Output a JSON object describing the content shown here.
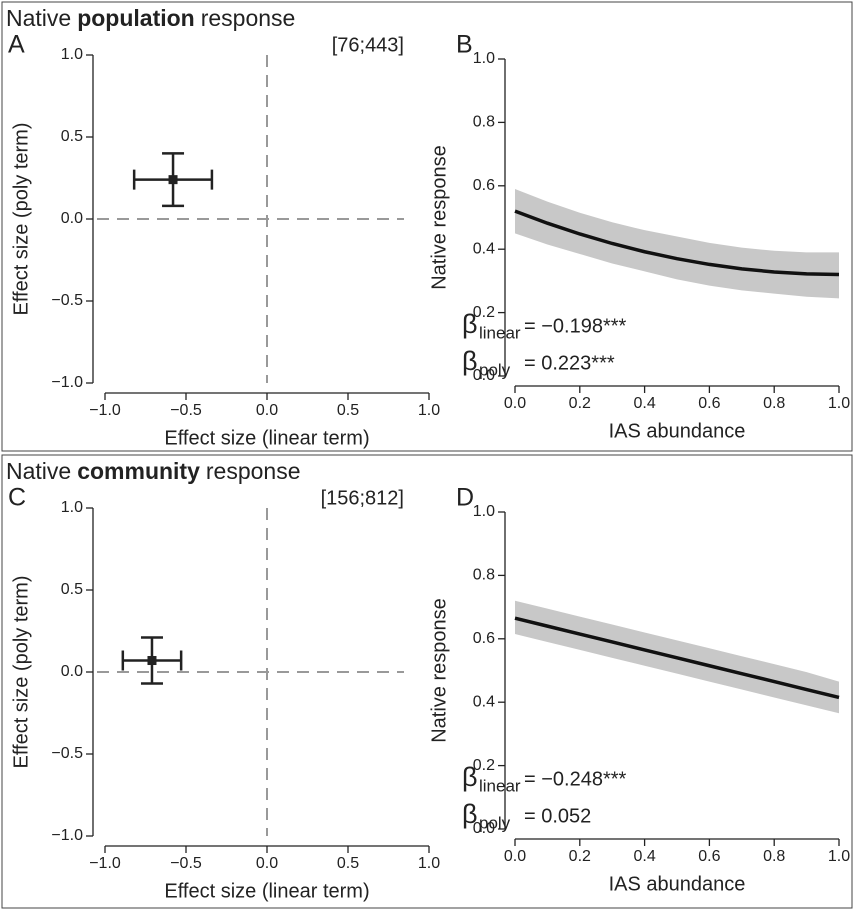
{
  "chart_data": [
    {
      "type": "scatter",
      "title_parts": [
        "Native",
        "population",
        "response"
      ],
      "panel_label": "A",
      "annotation": "[76;443]",
      "xlabel": "Effect size (linear term)",
      "ylabel": "Effect size (poly term)",
      "x": [
        -0.58
      ],
      "values": [
        0.24
      ],
      "xerr": [
        0.24
      ],
      "yerr": [
        0.16
      ],
      "color": "#222222",
      "ref_x": 0,
      "ref_y": 0,
      "ref_color": "#999999",
      "xlim": [
        -1,
        1
      ],
      "ylim": [
        -1,
        1
      ],
      "xticks": [
        {
          "value": -1,
          "label": "−1.0"
        },
        {
          "value": -0.5,
          "label": "−0.5"
        },
        {
          "value": 0,
          "label": "0.0"
        },
        {
          "value": 0.5,
          "label": "0.5"
        },
        {
          "value": 1,
          "label": "1.0"
        }
      ],
      "yticks": [
        {
          "value": -1,
          "label": "−1.0"
        },
        {
          "value": -0.5,
          "label": "−0.5"
        },
        {
          "value": 0,
          "label": "0.0"
        },
        {
          "value": 0.5,
          "label": "0.5"
        },
        {
          "value": 1,
          "label": "1.0"
        }
      ]
    },
    {
      "type": "line",
      "panel_label": "B",
      "xlabel": "IAS abundance",
      "ylabel": "Native response",
      "betas": [
        {
          "symbol": "β",
          "subscript": "linear",
          "text": "= −0.198***"
        },
        {
          "symbol": "β",
          "subscript": "poly",
          "text": "= 0.223***"
        }
      ],
      "x": [
        0,
        0.1,
        0.2,
        0.3,
        0.4,
        0.5,
        0.6,
        0.7,
        0.8,
        0.9,
        1
      ],
      "values": [
        0.52,
        0.482,
        0.448,
        0.418,
        0.392,
        0.37,
        0.352,
        0.338,
        0.328,
        0.322,
        0.32
      ],
      "lower": [
        0.45,
        0.415,
        0.385,
        0.355,
        0.33,
        0.305,
        0.285,
        0.27,
        0.26,
        0.25,
        0.245
      ],
      "upper": [
        0.59,
        0.55,
        0.515,
        0.485,
        0.46,
        0.44,
        0.42,
        0.405,
        0.395,
        0.39,
        0.39
      ],
      "color": "#111111",
      "band_color": "#c8c8c8",
      "xlim": [
        0,
        1
      ],
      "ylim": [
        0,
        1
      ],
      "xticks": [
        {
          "value": 0,
          "label": "0.0"
        },
        {
          "value": 0.2,
          "label": "0.2"
        },
        {
          "value": 0.4,
          "label": "0.4"
        },
        {
          "value": 0.6,
          "label": "0.6"
        },
        {
          "value": 0.8,
          "label": "0.8"
        },
        {
          "value": 1,
          "label": "1.0"
        }
      ],
      "yticks": [
        {
          "value": 0,
          "label": "0.0"
        },
        {
          "value": 0.2,
          "label": "0.2"
        },
        {
          "value": 0.4,
          "label": "0.4"
        },
        {
          "value": 0.6,
          "label": "0.6"
        },
        {
          "value": 0.8,
          "label": "0.8"
        },
        {
          "value": 1,
          "label": "1.0"
        }
      ]
    },
    {
      "type": "scatter",
      "title_parts": [
        "Native",
        "community",
        "response"
      ],
      "panel_label": "C",
      "annotation": "[156;812]",
      "xlabel": "Effect size (linear term)",
      "ylabel": "Effect size (poly term)",
      "x": [
        -0.71
      ],
      "values": [
        0.07
      ],
      "xerr": [
        0.18
      ],
      "yerr": [
        0.14
      ],
      "color": "#222222",
      "ref_x": 0,
      "ref_y": 0,
      "ref_color": "#999999",
      "xlim": [
        -1,
        1
      ],
      "ylim": [
        -1,
        1
      ],
      "xticks": [
        {
          "value": -1,
          "label": "−1.0"
        },
        {
          "value": -0.5,
          "label": "−0.5"
        },
        {
          "value": 0,
          "label": "0.0"
        },
        {
          "value": 0.5,
          "label": "0.5"
        },
        {
          "value": 1,
          "label": "1.0"
        }
      ],
      "yticks": [
        {
          "value": -1,
          "label": "−1.0"
        },
        {
          "value": -0.5,
          "label": "−0.5"
        },
        {
          "value": 0,
          "label": "0.0"
        },
        {
          "value": 0.5,
          "label": "0.5"
        },
        {
          "value": 1,
          "label": "1.0"
        }
      ]
    },
    {
      "type": "line",
      "panel_label": "D",
      "xlabel": "IAS abundance",
      "ylabel": "Native response",
      "betas": [
        {
          "symbol": "β",
          "subscript": "linear",
          "text": "= −0.248***"
        },
        {
          "symbol": "β",
          "subscript": "poly",
          "text": "= 0.052"
        }
      ],
      "x": [
        0,
        0.1,
        0.2,
        0.3,
        0.4,
        0.5,
        0.6,
        0.7,
        0.8,
        0.9,
        1
      ],
      "values": [
        0.665,
        0.64,
        0.615,
        0.59,
        0.565,
        0.54,
        0.515,
        0.49,
        0.465,
        0.44,
        0.415
      ],
      "lower": [
        0.615,
        0.59,
        0.565,
        0.54,
        0.515,
        0.49,
        0.465,
        0.44,
        0.415,
        0.39,
        0.365
      ],
      "upper": [
        0.72,
        0.695,
        0.67,
        0.645,
        0.62,
        0.595,
        0.57,
        0.545,
        0.52,
        0.495,
        0.465
      ],
      "color": "#111111",
      "band_color": "#c8c8c8",
      "xlim": [
        0,
        1
      ],
      "ylim": [
        0,
        1
      ],
      "xticks": [
        {
          "value": 0,
          "label": "0.0"
        },
        {
          "value": 0.2,
          "label": "0.2"
        },
        {
          "value": 0.4,
          "label": "0.4"
        },
        {
          "value": 0.6,
          "label": "0.6"
        },
        {
          "value": 0.8,
          "label": "0.8"
        },
        {
          "value": 1,
          "label": "1.0"
        }
      ],
      "yticks": [
        {
          "value": 0,
          "label": "0.0"
        },
        {
          "value": 0.2,
          "label": "0.2"
        },
        {
          "value": 0.4,
          "label": "0.4"
        },
        {
          "value": 0.6,
          "label": "0.6"
        },
        {
          "value": 0.8,
          "label": "0.8"
        },
        {
          "value": 1,
          "label": "1.0"
        }
      ]
    }
  ]
}
